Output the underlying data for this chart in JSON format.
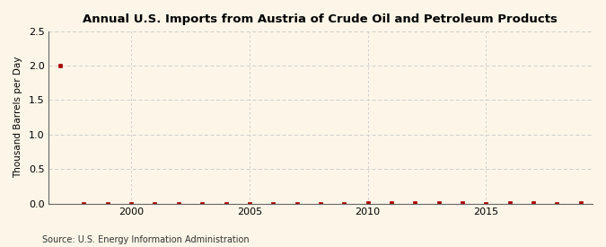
{
  "title": "Annual U.S. Imports from Austria of Crude Oil and Petroleum Products",
  "ylabel": "Thousand Barrels per Day",
  "source": "Source: U.S. Energy Information Administration",
  "background_color": "#fdf6e8",
  "plot_background_color": "#fdf6e8",
  "ylim": [
    0,
    2.5
  ],
  "yticks": [
    0.0,
    0.5,
    1.0,
    1.5,
    2.0,
    2.5
  ],
  "xlim": [
    1996.5,
    2019.5
  ],
  "xticks": [
    2000,
    2005,
    2010,
    2015
  ],
  "grid_color": "#c8c8c8",
  "data_color": "#aa0000",
  "marker": "s",
  "markersize": 3.0,
  "linewidth": 0.6,
  "years": [
    1997,
    1998,
    1999,
    2000,
    2001,
    2002,
    2003,
    2004,
    2005,
    2006,
    2007,
    2008,
    2009,
    2010,
    2011,
    2012,
    2013,
    2014,
    2015,
    2016,
    2017,
    2018,
    2019
  ],
  "values": [
    2.0,
    0.0,
    0.0,
    0.0,
    0.0,
    0.0,
    0.0,
    0.0,
    0.0,
    0.0,
    0.0,
    0.0,
    0.0,
    0.01,
    0.01,
    0.01,
    0.01,
    0.01,
    0.0,
    0.01,
    0.01,
    0.0,
    0.01
  ]
}
